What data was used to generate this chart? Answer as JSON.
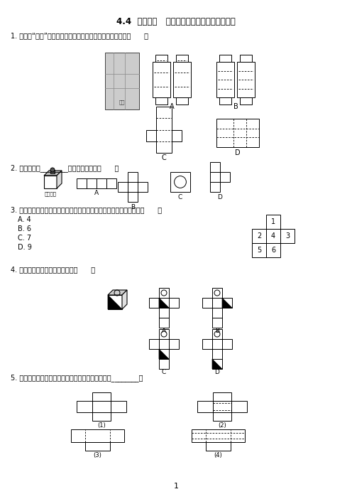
{
  "title": "4.4  课题学习   设计制作长方体形状的包装纸盒",
  "q1_text": "1. 下面是“蒙牛”牌牛奶软包装盒，其表面展开图不正确的是（      ）",
  "q2_text": "2. 下列图形中________可以折成正方体（      ）",
  "q3_text": "3. 如图是正方体的展开图，原正方体相对两个面上的数字之和最小是（      ）",
  "q3_options": [
    "A. 4",
    "B. 6",
    "C. 7",
    "D. 9"
  ],
  "q4_text": "4. 如图所示的正方体的展开图是（      ）",
  "q5_text": "5. 下列图形中，可以沿虚线折叠成长方体包装盒的有________。",
  "zhushipin": "主视方向",
  "mengniu": "蒙牛",
  "page_num": "1",
  "bg_color": "#ffffff",
  "text_color": "#000000"
}
